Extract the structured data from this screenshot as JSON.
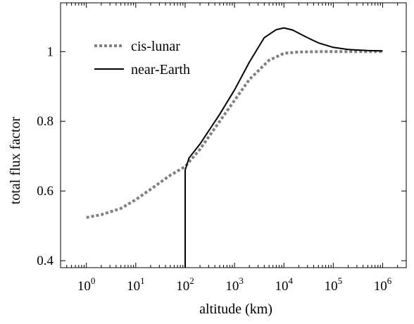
{
  "chart_data": {
    "type": "line",
    "title": "",
    "xlabel": "altitude (km)",
    "ylabel": "total flux factor",
    "xscale": "log",
    "xlim": [
      0.3,
      3000000
    ],
    "ylim": [
      0.38,
      1.14
    ],
    "x_ticks": [
      {
        "base": "10",
        "exp": "0",
        "value": 1
      },
      {
        "base": "10",
        "exp": "1",
        "value": 10
      },
      {
        "base": "10",
        "exp": "2",
        "value": 100
      },
      {
        "base": "10",
        "exp": "3",
        "value": 1000
      },
      {
        "base": "10",
        "exp": "4",
        "value": 10000
      },
      {
        "base": "10",
        "exp": "5",
        "value": 100000
      },
      {
        "base": "10",
        "exp": "6",
        "value": 1000000
      }
    ],
    "y_ticks": [
      {
        "label": "0.4",
        "value": 0.4
      },
      {
        "label": "0.6",
        "value": 0.6
      },
      {
        "label": "0.8",
        "value": 0.8
      },
      {
        "label": "1",
        "value": 1.0
      }
    ],
    "grid": false,
    "legend_position": "top-left",
    "series": [
      {
        "name": "cis-lunar",
        "style": "dotted",
        "color": "#808080",
        "x": [
          1,
          2,
          5,
          10,
          20,
          50,
          100,
          200,
          500,
          1000,
          2000,
          5000,
          10000,
          20000,
          50000,
          100000,
          1000000
        ],
        "y": [
          0.524,
          0.532,
          0.55,
          0.575,
          0.605,
          0.645,
          0.67,
          0.72,
          0.8,
          0.86,
          0.92,
          0.975,
          0.995,
          0.999,
          1.0,
          1.0,
          1.0
        ]
      },
      {
        "name": "near-Earth",
        "style": "solid",
        "color": "#000000",
        "x": [
          100,
          100,
          120,
          200,
          500,
          1000,
          2000,
          4000,
          7000,
          10000,
          15000,
          30000,
          50000,
          100000,
          200000,
          500000,
          1000000
        ],
        "y": [
          0.38,
          0.66,
          0.695,
          0.735,
          0.82,
          0.89,
          0.97,
          1.04,
          1.063,
          1.068,
          1.062,
          1.04,
          1.025,
          1.012,
          1.006,
          1.003,
          1.002
        ]
      }
    ]
  }
}
